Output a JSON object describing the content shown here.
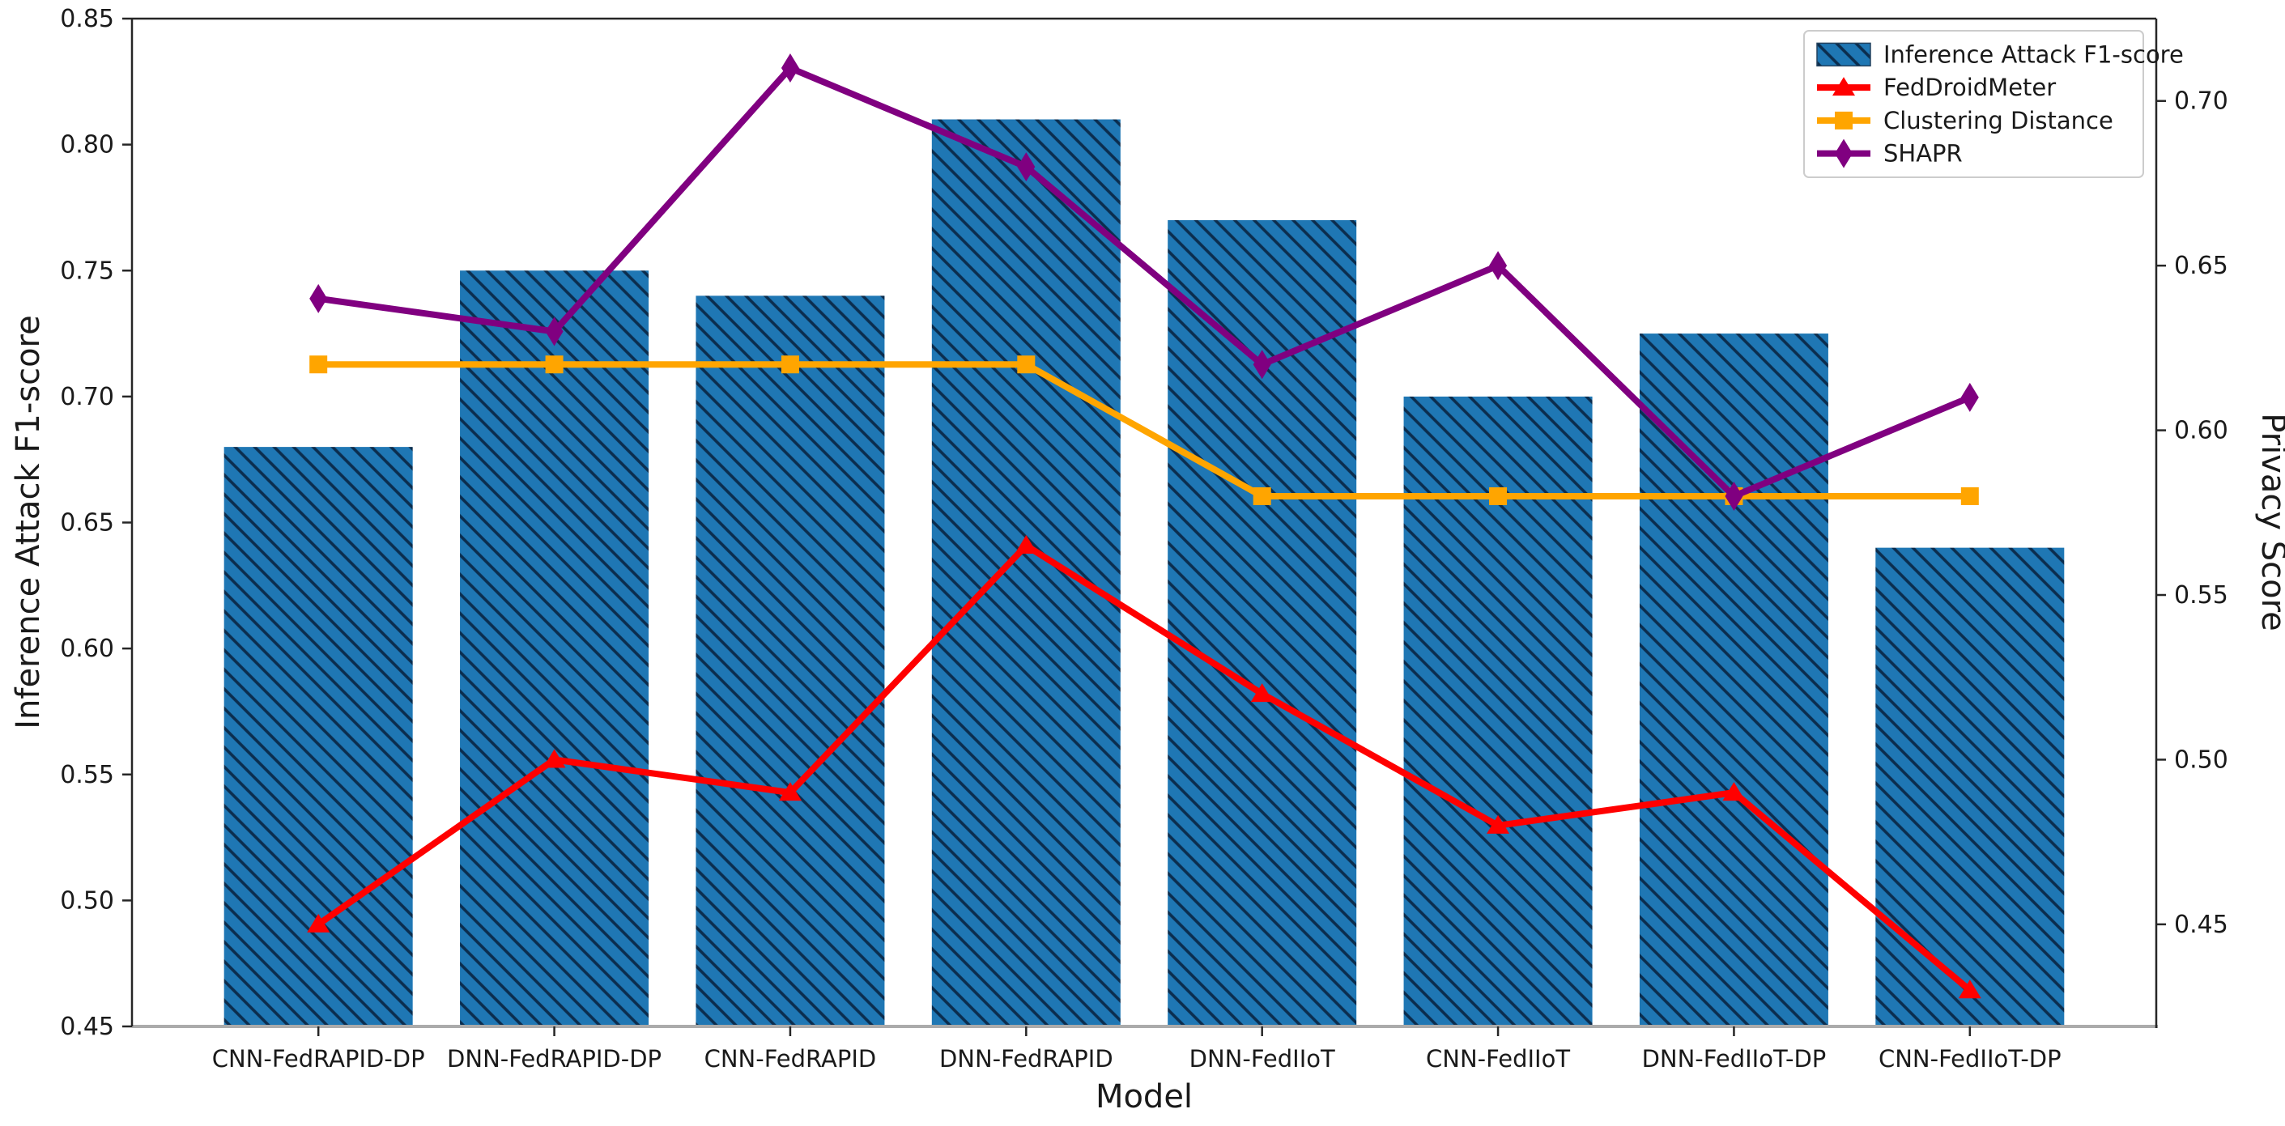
{
  "chart_data": {
    "type": "bar",
    "subtype": "dual-axis bar and line combo",
    "categories": [
      "CNN-FedRAPID-DP",
      "DNN-FedRAPID-DP",
      "CNN-FedRAPID",
      "DNN-FedRAPID",
      "DNN-FedIIoT",
      "CNN-FedIIoT",
      "DNN-FedIIoT-DP",
      "CNN-FedIIoT-DP"
    ],
    "series": [
      {
        "name": "Inference Attack F1-score",
        "type": "bar",
        "axis": "left",
        "color": "#1f77b4",
        "hatch": "//",
        "hatch_color": "#0b2d4e",
        "values": [
          0.68,
          0.75,
          0.74,
          0.81,
          0.77,
          0.7,
          0.725,
          0.64
        ]
      },
      {
        "name": "FedDroidMeter",
        "type": "line",
        "axis": "right",
        "color": "#ff0000",
        "marker": "triangle-up",
        "values": [
          0.45,
          0.5,
          0.49,
          0.565,
          0.52,
          0.48,
          0.49,
          0.43
        ]
      },
      {
        "name": "Clustering Distance",
        "type": "line",
        "axis": "right",
        "color": "#ffa500",
        "marker": "square",
        "values": [
          0.62,
          0.62,
          0.62,
          0.62,
          0.58,
          0.58,
          0.58,
          0.58
        ]
      },
      {
        "name": "SHAPR",
        "type": "line",
        "axis": "right",
        "color": "#800080",
        "marker": "diamond",
        "values": [
          0.64,
          0.63,
          0.71,
          0.68,
          0.62,
          0.65,
          0.58,
          0.61
        ]
      }
    ],
    "xlabel": "Model",
    "ylabel_left": "Inference Attack F1-score",
    "ylabel_right": "Privacy Score",
    "ylim_left": [
      0.45,
      0.85
    ],
    "ylim_right": [
      0.419,
      0.725
    ],
    "yticks_left": [
      "0.45",
      "0.50",
      "0.55",
      "0.60",
      "0.65",
      "0.70",
      "0.75",
      "0.80",
      "0.85"
    ],
    "yticks_right": [
      "0.45",
      "0.50",
      "0.55",
      "0.60",
      "0.65",
      "0.70"
    ],
    "legend": {
      "position": "upper-right",
      "entries": [
        "Inference Attack F1-score",
        "FedDroidMeter",
        "Clustering Distance",
        "SHAPR"
      ]
    },
    "grid": false,
    "background": "#ffffff",
    "spine_bottom_color": "#ababab",
    "spine_color": "#262626"
  }
}
